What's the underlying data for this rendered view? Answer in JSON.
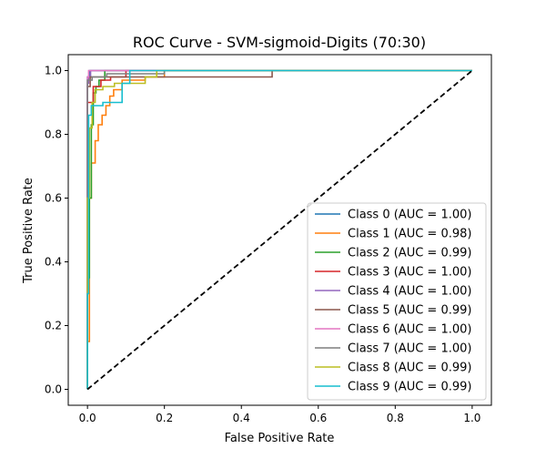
{
  "chart_data": {
    "type": "line",
    "title": "ROC Curve - SVM-sigmoid-Digits (70:30)",
    "xlabel": "False Positive Rate",
    "ylabel": "True Positive Rate",
    "xlim": [
      -0.05,
      1.05
    ],
    "ylim": [
      -0.05,
      1.05
    ],
    "xticks": [
      0.0,
      0.2,
      0.4,
      0.6,
      0.8,
      1.0
    ],
    "yticks": [
      0.0,
      0.2,
      0.4,
      0.6,
      0.8,
      1.0
    ],
    "xtick_labels": [
      "0.0",
      "0.2",
      "0.4",
      "0.6",
      "0.8",
      "1.0"
    ],
    "ytick_labels": [
      "0.0",
      "0.2",
      "0.4",
      "0.6",
      "0.8",
      "1.0"
    ],
    "grid": false,
    "legend_position": "lower-right",
    "diagonal": {
      "x": [
        0,
        1
      ],
      "y": [
        0,
        1
      ],
      "style": "dashed",
      "color": "#000000"
    },
    "series": [
      {
        "name": "Class 0 (AUC = 1.00)",
        "color": "#1f77b4",
        "x": [
          0,
          0,
          0,
          0.005,
          0.005,
          1.0
        ],
        "y": [
          0,
          0.5,
          0.98,
          0.98,
          1.0,
          1.0
        ]
      },
      {
        "name": "Class 1 (AUC = 0.98)",
        "color": "#ff7f0e",
        "x": [
          0,
          0,
          0.005,
          0.005,
          0.01,
          0.01,
          0.02,
          0.02,
          0.028,
          0.028,
          0.038,
          0.038,
          0.048,
          0.048,
          0.058,
          0.058,
          0.068,
          0.068,
          0.09,
          0.09,
          0.15,
          0.15,
          0.2,
          0.2,
          1.0
        ],
        "y": [
          0,
          0.15,
          0.15,
          0.6,
          0.6,
          0.71,
          0.71,
          0.78,
          0.78,
          0.83,
          0.83,
          0.86,
          0.86,
          0.89,
          0.89,
          0.92,
          0.92,
          0.94,
          0.94,
          0.97,
          0.97,
          0.98,
          0.98,
          1.0,
          1.0
        ]
      },
      {
        "name": "Class 2 (AUC = 0.99)",
        "color": "#2ca02c",
        "x": [
          0,
          0,
          0.005,
          0.005,
          0.01,
          0.01,
          0.015,
          0.015,
          0.022,
          0.022,
          0.03,
          0.03,
          0.045,
          0.045,
          1.0
        ],
        "y": [
          0,
          0.35,
          0.35,
          0.6,
          0.6,
          0.83,
          0.83,
          0.93,
          0.93,
          0.95,
          0.95,
          0.97,
          0.97,
          1.0,
          1.0
        ]
      },
      {
        "name": "Class 3 (AUC = 1.00)",
        "color": "#d62728",
        "x": [
          0,
          0,
          0.015,
          0.015,
          0.035,
          0.035,
          0.06,
          0.06,
          0.1,
          0.1,
          1.0
        ],
        "y": [
          0,
          0.9,
          0.9,
          0.95,
          0.95,
          0.97,
          0.97,
          0.98,
          0.98,
          1.0,
          1.0
        ]
      },
      {
        "name": "Class 4 (AUC = 1.00)",
        "color": "#9467bd",
        "x": [
          0,
          0,
          0.003,
          0.003,
          0.008,
          0.008,
          1.0
        ],
        "y": [
          0,
          0.96,
          0.96,
          0.98,
          0.98,
          1.0,
          1.0
        ]
      },
      {
        "name": "Class 5 (AUC = 0.99)",
        "color": "#8c564b",
        "x": [
          0,
          0,
          0.007,
          0.007,
          0.48,
          0.48,
          1.0
        ],
        "y": [
          0,
          0.95,
          0.95,
          0.98,
          0.98,
          1.0,
          1.0
        ]
      },
      {
        "name": "Class 6 (AUC = 1.00)",
        "color": "#e377c2",
        "x": [
          0,
          0,
          0.003,
          0.003,
          1.0
        ],
        "y": [
          0,
          0.98,
          0.98,
          1.0,
          1.0
        ]
      },
      {
        "name": "Class 7 (AUC = 1.00)",
        "color": "#7f7f7f",
        "x": [
          0,
          0,
          0.012,
          0.012,
          0.05,
          0.05,
          0.2,
          0.2,
          1.0
        ],
        "y": [
          0,
          0.97,
          0.97,
          0.98,
          0.98,
          0.99,
          0.99,
          1.0,
          1.0
        ]
      },
      {
        "name": "Class 8 (AUC = 0.99)",
        "color": "#bcbd22",
        "x": [
          0,
          0,
          0.005,
          0.005,
          0.012,
          0.012,
          0.02,
          0.02,
          0.04,
          0.04,
          0.07,
          0.07,
          0.15,
          0.15,
          0.18,
          0.18,
          1.0
        ],
        "y": [
          0,
          0.6,
          0.6,
          0.82,
          0.82,
          0.9,
          0.9,
          0.94,
          0.94,
          0.95,
          0.95,
          0.96,
          0.96,
          0.98,
          0.98,
          1.0,
          1.0
        ]
      },
      {
        "name": "Class 9 (AUC = 0.99)",
        "color": "#17becf",
        "x": [
          0,
          0,
          0.003,
          0.003,
          0.01,
          0.01,
          0.04,
          0.04,
          0.09,
          0.09,
          0.11,
          0.11,
          1.0
        ],
        "y": [
          0,
          0.3,
          0.3,
          0.86,
          0.86,
          0.89,
          0.89,
          0.9,
          0.9,
          0.96,
          0.96,
          1.0,
          1.0
        ]
      }
    ]
  }
}
